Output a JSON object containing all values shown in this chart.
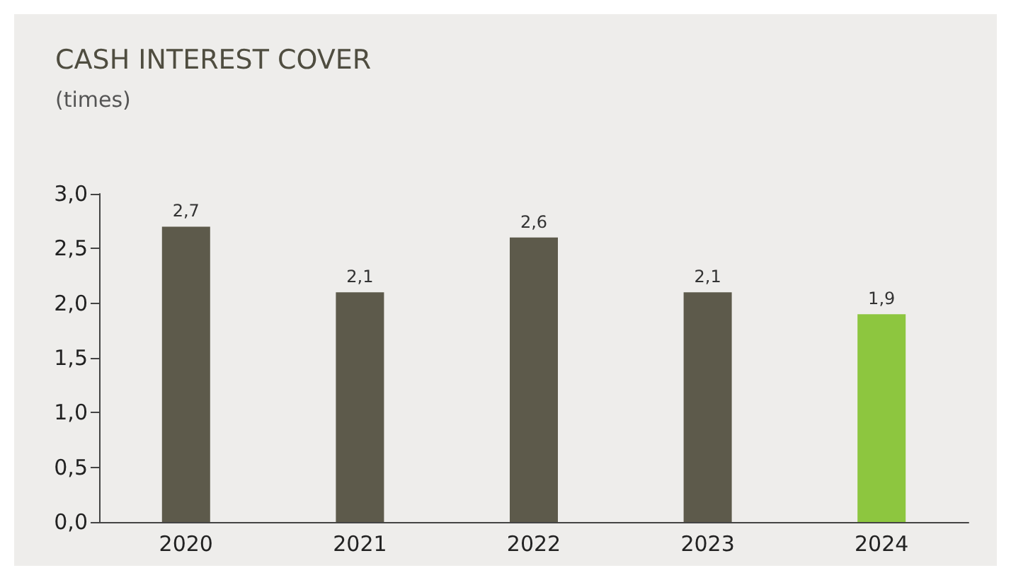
{
  "chart_data": {
    "type": "bar",
    "title": "CASH INTEREST COVER",
    "subtitle": "(times)",
    "categories": [
      "2020",
      "2021",
      "2022",
      "2023",
      "2024"
    ],
    "values": [
      2.7,
      2.1,
      2.6,
      2.1,
      1.9
    ],
    "colors": [
      "#5d5a4b",
      "#5d5a4b",
      "#5d5a4b",
      "#5d5a4b",
      "#8dc63f"
    ],
    "value_labels": [
      "2,7",
      "2,1",
      "2,6",
      "2,1",
      "1,9"
    ],
    "ylim": [
      0,
      3
    ],
    "yticks": [
      {
        "value": 0,
        "label": "0,0"
      },
      {
        "value": 0.5,
        "label": "0,5"
      },
      {
        "value": 1,
        "label": "1,0"
      },
      {
        "value": 1.5,
        "label": "1,5"
      },
      {
        "value": 2,
        "label": "2,0"
      },
      {
        "value": 2.5,
        "label": "2,5"
      },
      {
        "value": 3,
        "label": "3,0"
      }
    ],
    "grid": false
  }
}
